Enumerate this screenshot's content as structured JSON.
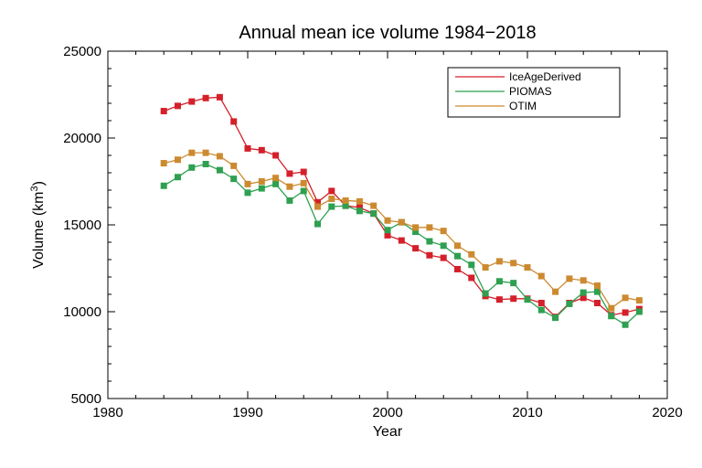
{
  "chart_data": {
    "type": "line",
    "title": "Annual mean ice volume 1984−2018",
    "xlabel": "Year",
    "ylabel": "Volume (km",
    "ylabel_sup": "3",
    "ylabel_close": ")",
    "xlim": [
      1980,
      2020
    ],
    "ylim": [
      5000,
      25000
    ],
    "xticks": [
      1980,
      1990,
      2000,
      2010,
      2020
    ],
    "yticks": [
      5000,
      10000,
      15000,
      20000,
      25000
    ],
    "x": [
      1984,
      1985,
      1986,
      1987,
      1988,
      1989,
      1990,
      1991,
      1992,
      1993,
      1994,
      1995,
      1996,
      1997,
      1998,
      1999,
      2000,
      2001,
      2002,
      2003,
      2004,
      2005,
      2006,
      2007,
      2008,
      2009,
      2010,
      2011,
      2012,
      2013,
      2014,
      2015,
      2016,
      2017,
      2018
    ],
    "grid": false,
    "legend_position": "top-right",
    "series": [
      {
        "name": "IceAgeDerived",
        "color": "#d4202a",
        "x": [
          1984,
          1985,
          1986,
          1987,
          1988,
          1989,
          1990,
          1991,
          1992,
          1993,
          1994,
          1995,
          1996,
          1997,
          1998,
          1999,
          2000,
          2001,
          2002,
          2003,
          2004,
          2005,
          2006,
          2007,
          2008,
          2009,
          2010,
          2011,
          2012,
          2013,
          2014,
          2015,
          2016,
          2017,
          2018
        ],
        "values": [
          21550,
          21850,
          22100,
          22300,
          22350,
          20950,
          19400,
          19300,
          19000,
          17950,
          18050,
          16300,
          16950,
          16100,
          16000,
          15650,
          14400,
          14100,
          13650,
          13250,
          13100,
          12450,
          11950,
          10900,
          10700,
          10750,
          10750,
          10500,
          9700,
          10500,
          10800,
          10500,
          9800,
          9950,
          10150
        ]
      },
      {
        "name": "PIOMAS",
        "color": "#2ea050",
        "x": [
          1984,
          1985,
          1986,
          1987,
          1988,
          1989,
          1990,
          1991,
          1992,
          1993,
          1994,
          1995,
          1996,
          1997,
          1998,
          1999,
          2000,
          2001,
          2002,
          2003,
          2004,
          2005,
          2006,
          2007,
          2008,
          2009,
          2010,
          2011,
          2012,
          2013,
          2014,
          2015,
          2016,
          2017,
          2018
        ],
        "values": [
          17250,
          17750,
          18300,
          18500,
          18150,
          17650,
          16850,
          17100,
          17350,
          16400,
          16950,
          15050,
          16050,
          16100,
          15800,
          15650,
          14700,
          15150,
          14600,
          14050,
          13800,
          13200,
          12700,
          11050,
          11750,
          11650,
          10700,
          10100,
          9650,
          10450,
          11100,
          11150,
          9750,
          9250,
          10000
        ]
      },
      {
        "name": "OTIM",
        "color": "#cc8a30",
        "x": [
          1984,
          1985,
          1986,
          1987,
          1988,
          1989,
          1990,
          1991,
          1992,
          1993,
          1994,
          1995,
          1996,
          1997,
          1998,
          1999,
          2000,
          2001,
          2002,
          2003,
          2004,
          2005,
          2006,
          2007,
          2008,
          2009,
          2010,
          2011,
          2012,
          2013,
          2014,
          2015,
          2016,
          2017,
          2018
        ],
        "values": [
          18550,
          18750,
          19150,
          19150,
          18950,
          18400,
          17350,
          17500,
          17700,
          17200,
          17400,
          16050,
          16500,
          16400,
          16350,
          16100,
          15250,
          15150,
          14850,
          14850,
          14650,
          13800,
          13300,
          12550,
          12900,
          12800,
          12550,
          12050,
          11150,
          11900,
          11800,
          11500,
          10200,
          10800,
          10650
        ]
      }
    ]
  }
}
